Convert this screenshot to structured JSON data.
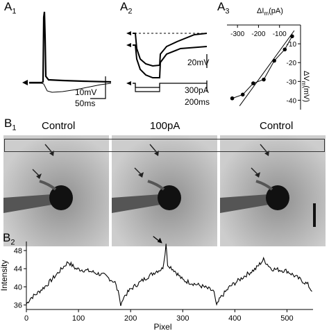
{
  "panel_labels": {
    "a1": "A",
    "a1_sub": "1",
    "a2": "A",
    "a2_sub": "2",
    "a3": "A",
    "a3_sub": "3",
    "b1": "B",
    "b1_sub": "1",
    "b2": "B",
    "b2_sub": "2"
  },
  "a1": {
    "scale_v": "10mV",
    "scale_t": "50ms"
  },
  "a2": {
    "scale_v": "20mV",
    "scale_i": "300pA",
    "scale_t": "200ms"
  },
  "a3": {
    "xlabel": "ΔI",
    "xlabel_sub": "m",
    "xlabel_unit": "(pA)",
    "ylabel": "ΔV",
    "ylabel_sub": "m",
    "ylabel_unit": "(mV)",
    "xticks": [
      "-300",
      "-200",
      "-100"
    ],
    "yticks": [
      "-10",
      "-20",
      "-30",
      "-40"
    ]
  },
  "b1": {
    "titles": [
      "Control",
      "100pA",
      "Control"
    ]
  },
  "chart_data": [
    {
      "type": "scatter",
      "xlabel": "ΔIm(pA)",
      "ylabel": "ΔVm(mV)",
      "xlim": [
        -350,
        0
      ],
      "ylim": [
        -45,
        0
      ],
      "x": [
        -325,
        -275,
        -225,
        -175,
        -125,
        -75,
        -40
      ],
      "y": [
        -39,
        -37,
        -31,
        -29,
        -19,
        -13,
        -6
      ],
      "fit_line": {
        "x": [
          -290,
          -30
        ],
        "y": [
          -43,
          -3
        ]
      }
    },
    {
      "type": "line",
      "xlabel": "Pixel",
      "ylabel": "Intensity",
      "xlim": [
        0,
        550
      ],
      "ylim": [
        35,
        50
      ],
      "xticks": [
        "0",
        "100",
        "200",
        "300",
        "400",
        "500"
      ],
      "yticks": [
        "36",
        "40",
        "44",
        "48"
      ],
      "anchors": [
        [
          0,
          36.2
        ],
        [
          8,
          37.5
        ],
        [
          20,
          38.5
        ],
        [
          40,
          40.5
        ],
        [
          60,
          43
        ],
        [
          80,
          45.5
        ],
        [
          95,
          44
        ],
        [
          120,
          43.5
        ],
        [
          150,
          42.5
        ],
        [
          170,
          41
        ],
        [
          178,
          38
        ],
        [
          181,
          35.8
        ],
        [
          185,
          37.5
        ],
        [
          200,
          39.5
        ],
        [
          230,
          42
        ],
        [
          250,
          43.5
        ],
        [
          262,
          44
        ],
        [
          266,
          47
        ],
        [
          268,
          49.5
        ],
        [
          271,
          45
        ],
        [
          285,
          43.5
        ],
        [
          300,
          41.5
        ],
        [
          340,
          40
        ],
        [
          360,
          39
        ],
        [
          365,
          35.8
        ],
        [
          372,
          37.5
        ],
        [
          390,
          40
        ],
        [
          420,
          42.5
        ],
        [
          440,
          44
        ],
        [
          455,
          46
        ],
        [
          470,
          44
        ],
        [
          500,
          43.5
        ],
        [
          520,
          42
        ],
        [
          540,
          40.5
        ],
        [
          548,
          39
        ]
      ]
    }
  ]
}
